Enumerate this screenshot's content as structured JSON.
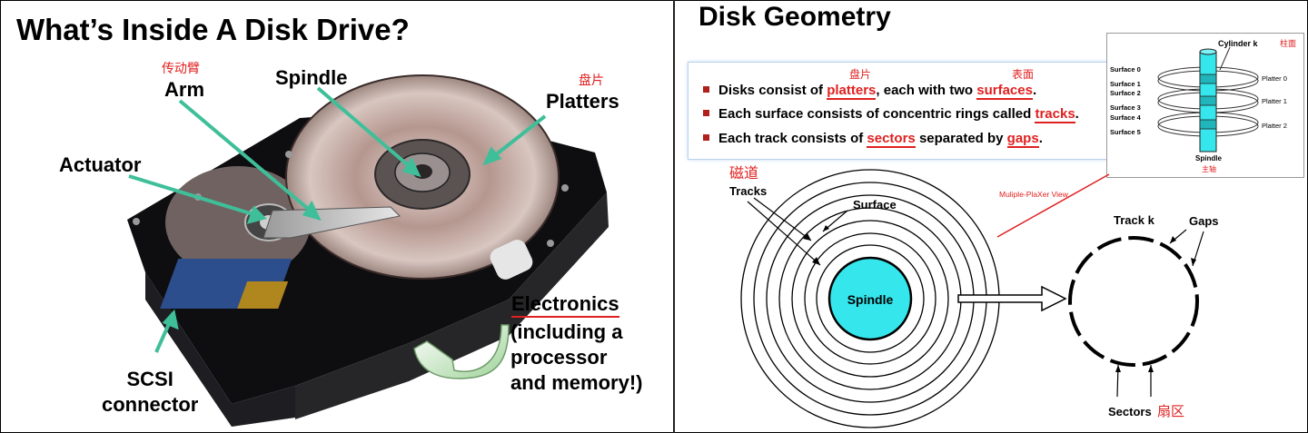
{
  "left": {
    "title": "What’s Inside A Disk Drive?",
    "labels": {
      "arm_cn": "传动臂",
      "arm": "Arm",
      "spindle": "Spindle",
      "platters_cn": "盘片",
      "platters": "Platters",
      "actuator": "Actuator",
      "electronics": "Electronics",
      "electronics_rest": [
        "(including a",
        "processor",
        "and memory!)"
      ],
      "scsi": [
        "SCSI",
        "connector"
      ]
    }
  },
  "right": {
    "title": "Disk Geometry",
    "bullets": [
      {
        "prefix": "Disks consist of ",
        "term1": "platters",
        "middle": ", each with two ",
        "term2": "surfaces",
        "suffix": "."
      },
      {
        "prefix": "Each surface consists of concentric rings called ",
        "term1": "tracks",
        "suffix": "."
      },
      {
        "prefix": "Each track consists of ",
        "term1": "sectors",
        "middle": " separated by ",
        "term2": "gaps",
        "suffix": "."
      }
    ],
    "bullet_cn": {
      "platters": "盘片",
      "surfaces": "表面"
    },
    "inset": {
      "cylinder": "Cylinder k",
      "cylinder_cn": "柱面",
      "surfaces": [
        "Surface 0",
        "Surface 1",
        "Surface 2",
        "Surface 3",
        "Surface 4",
        "Surface 5"
      ],
      "platters": [
        "Platter 0",
        "Platter 1",
        "Platter 2"
      ],
      "spindle": "Spindle",
      "spindle_cn": "主轴"
    },
    "diagram": {
      "tracks_cn": "磁道",
      "tracks": "Tracks",
      "surface": "Surface",
      "spindle": "Spindle",
      "multiple_view": "Muliple-PlaXer View",
      "track_k": "Track k",
      "gaps": "Gaps",
      "sectors": "Sectors",
      "sectors_cn": "扇区"
    },
    "colors": {
      "spindle": "#35e6ec",
      "accent": "#e02020"
    }
  }
}
